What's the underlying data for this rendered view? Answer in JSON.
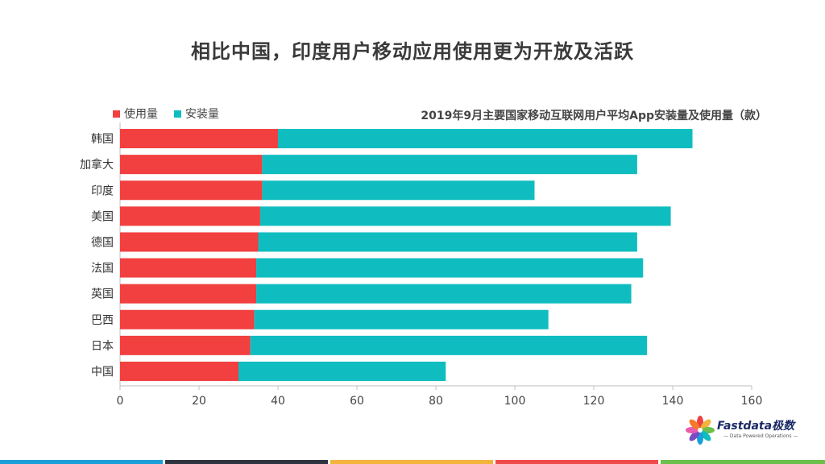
{
  "slide": {
    "title": "相比中国，印度用户移动应用使用更为开放及活跃"
  },
  "legend": {
    "usage_label": "使用量",
    "install_label": "安装量"
  },
  "logo": {
    "brand": "Fastdata极数",
    "tagline": "— Data Powered Operations —"
  },
  "colors": {
    "usage": "#f23f3f",
    "install": "#0fbdc0",
    "footer": [
      "#1a9fd8",
      "#2f3540",
      "#f2b43a",
      "#ef4a4a",
      "#6cbf4b"
    ]
  },
  "chart_data": {
    "type": "bar",
    "orientation": "horizontal",
    "stacked": true,
    "title": "2019年9月主要国家移动互联网用户平均App安装量及使用量（款）",
    "categories": [
      "韩国",
      "加拿大",
      "印度",
      "美国",
      "德国",
      "法国",
      "英国",
      "巴西",
      "日本",
      "中国"
    ],
    "series": [
      {
        "name": "使用量",
        "values": [
          40,
          36,
          36,
          35.5,
          35,
          34.5,
          34.5,
          34,
          33,
          30
        ]
      },
      {
        "name": "安装量",
        "values": [
          105,
          95,
          69,
          104,
          96,
          98,
          95,
          74.5,
          100.5,
          52.5
        ]
      }
    ],
    "xlim": [
      0,
      160
    ],
    "xticks": [
      0,
      20,
      40,
      60,
      80,
      100,
      120,
      140,
      160
    ],
    "grid": false,
    "legend_position": "top-left"
  }
}
